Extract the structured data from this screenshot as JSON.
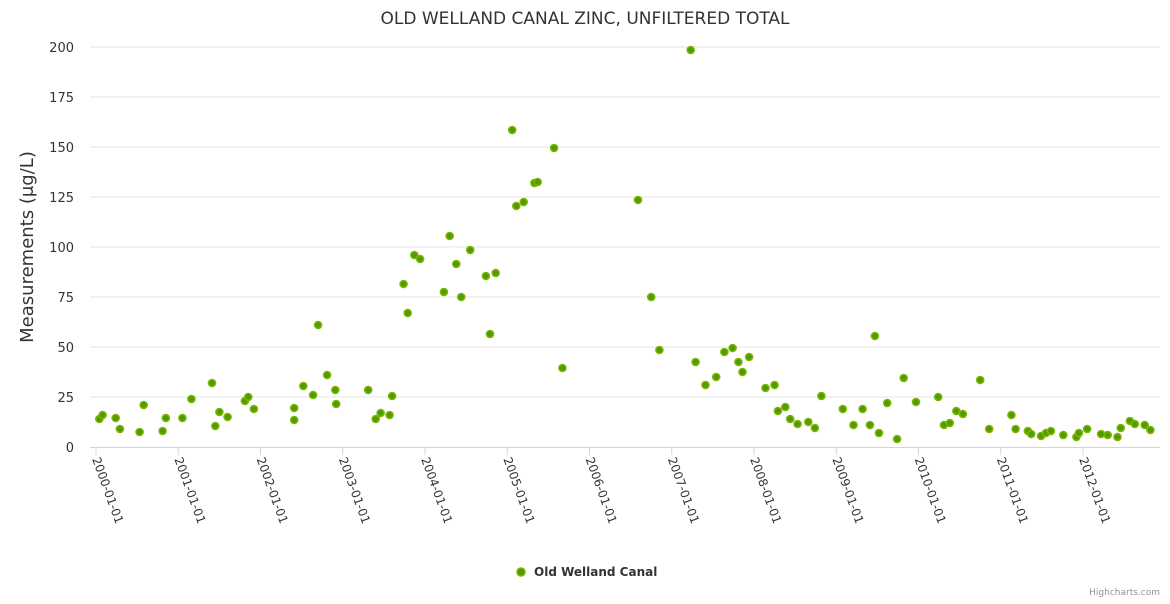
{
  "chart_data": {
    "type": "scatter",
    "title": "OLD WELLAND CANAL ZINC, UNFILTERED TOTAL",
    "xlabel": "",
    "ylabel": "Measurements (μg/L)",
    "ylim": [
      0,
      200
    ],
    "xlim": [
      1999.93,
      2012.95
    ],
    "y_ticks": [
      0,
      25,
      50,
      75,
      100,
      125,
      150,
      175,
      200
    ],
    "y_tick_labels": [
      "0",
      "25",
      "50",
      "75",
      "100",
      "125",
      "150",
      "175",
      "200"
    ],
    "x_ticks": [
      2000,
      2001,
      2002,
      2003,
      2004,
      2005,
      2006,
      2007,
      2008,
      2009,
      2010,
      2011,
      2012
    ],
    "x_tick_labels": [
      "2000-01-01",
      "2001-01-01",
      "2002-01-01",
      "2003-01-01",
      "2004-01-01",
      "2005-01-01",
      "2006-01-01",
      "2007-01-01",
      "2008-01-01",
      "2009-01-01",
      "2010-01-01",
      "2011-01-01",
      "2012-01-01"
    ],
    "grid": true,
    "legend_position": "bottom-center",
    "series": [
      {
        "name": "Old Welland Canal",
        "color": "#7cb500",
        "marker_inner": "#4e9a00",
        "x": [
          2000.04,
          2000.08,
          2000.24,
          2000.29,
          2000.53,
          2000.58,
          2000.81,
          2000.85,
          2001.05,
          2001.16,
          2001.41,
          2001.45,
          2001.5,
          2001.6,
          2001.81,
          2001.85,
          2001.92,
          2002.41,
          2002.41,
          2002.52,
          2002.64,
          2002.7,
          2002.81,
          2002.91,
          2002.92,
          2003.31,
          2003.4,
          2003.46,
          2003.57,
          2003.6,
          2003.74,
          2003.79,
          2003.87,
          2003.94,
          2004.23,
          2004.3,
          2004.38,
          2004.44,
          2004.55,
          2004.74,
          2004.79,
          2004.86,
          2005.06,
          2005.11,
          2005.2,
          2005.33,
          2005.37,
          2005.57,
          2005.67,
          2006.59,
          2006.75,
          2006.85,
          2007.23,
          2007.29,
          2007.41,
          2007.54,
          2007.64,
          2007.74,
          2007.81,
          2007.86,
          2007.94,
          2008.14,
          2008.25,
          2008.29,
          2008.38,
          2008.44,
          2008.53,
          2008.66,
          2008.74,
          2008.82,
          2009.08,
          2009.21,
          2009.32,
          2009.41,
          2009.47,
          2009.52,
          2009.62,
          2009.74,
          2009.82,
          2009.97,
          2010.24,
          2010.31,
          2010.38,
          2010.46,
          2010.54,
          2010.75,
          2010.86,
          2011.13,
          2011.18,
          2011.33,
          2011.37,
          2011.49,
          2011.55,
          2011.61,
          2011.76,
          2011.92,
          2011.95,
          2012.05,
          2012.22,
          2012.3,
          2012.42,
          2012.46,
          2012.57,
          2012.63,
          2012.75,
          2012.82
        ],
        "y": [
          14,
          16,
          14.5,
          9,
          7.5,
          21,
          8,
          14.5,
          14.5,
          24,
          32,
          10.5,
          17.5,
          15,
          23,
          25,
          19,
          13.5,
          19.5,
          30.5,
          26,
          61,
          36,
          28.5,
          21.5,
          28.5,
          14,
          17,
          16,
          25.5,
          81.5,
          67,
          96,
          94,
          77.5,
          105.5,
          91.5,
          75,
          98.5,
          85.5,
          56.5,
          87,
          158.5,
          120.5,
          122.5,
          132,
          132.5,
          149.5,
          39.5,
          123.5,
          75,
          48.5,
          198.5,
          42.5,
          31,
          35,
          47.5,
          49.5,
          42.5,
          37.5,
          45,
          29.5,
          31,
          18,
          20,
          14,
          11.5,
          12.5,
          9.5,
          25.5,
          19,
          11,
          19,
          11,
          55.5,
          7,
          22,
          4,
          34.5,
          22.5,
          25,
          11,
          12,
          18,
          16.5,
          33.5,
          9,
          16,
          9,
          8,
          6.5,
          5.5,
          7,
          8,
          6,
          5,
          7,
          9,
          6.5,
          6,
          5,
          9.5,
          13,
          11.5,
          11,
          8.5
        ]
      }
    ],
    "credits": "Highcharts.com"
  }
}
